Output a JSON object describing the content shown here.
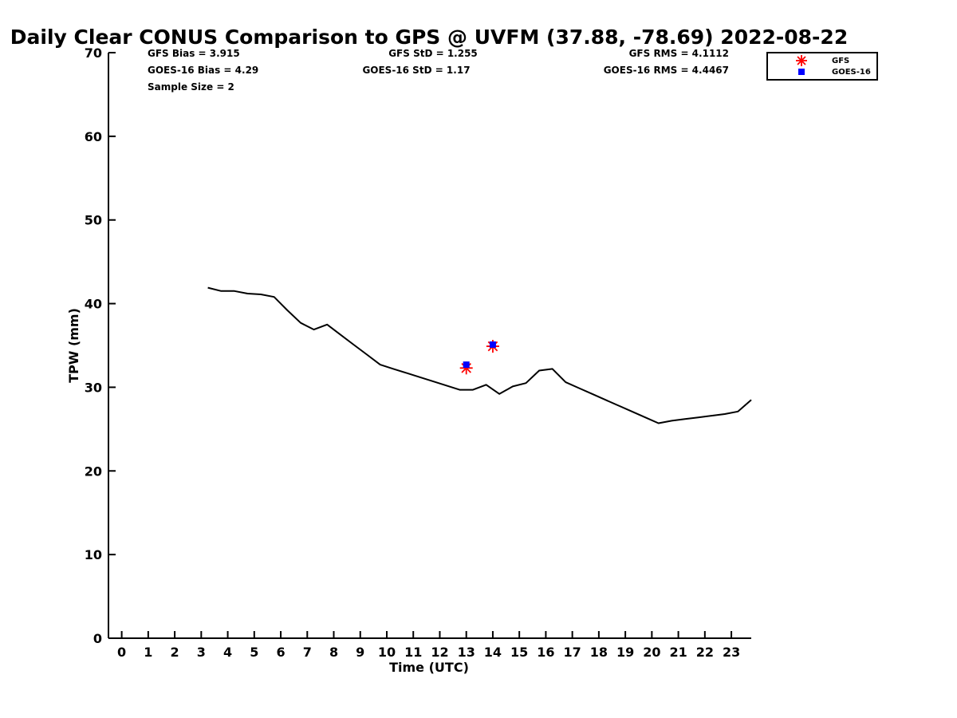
{
  "chart_data": {
    "type": "scatter",
    "title": "Daily Clear CONUS Comparison to GPS @ UVFM (37.88, -78.69) 2022-08-22",
    "xlabel": "Time (UTC)",
    "ylabel": "TPW (mm)",
    "xlim": [
      -0.5,
      23.75
    ],
    "ylim": [
      0,
      70
    ],
    "xticks": [
      0,
      1,
      2,
      3,
      4,
      5,
      6,
      7,
      8,
      9,
      10,
      11,
      12,
      13,
      14,
      15,
      16,
      17,
      18,
      19,
      20,
      21,
      22,
      23
    ],
    "yticks": [
      0,
      10,
      20,
      30,
      40,
      50,
      60,
      70
    ],
    "grid": false,
    "legend_position": "top-right",
    "stats": {
      "gfs_bias": "GFS Bias = 3.915",
      "goes_bias": "GOES-16 Bias = 4.29",
      "sample_size": "Sample Size = 2",
      "gfs_std": "GFS StD = 1.255",
      "goes_std": "GOES-16 StD = 1.17",
      "gfs_rms": "GFS RMS = 4.1112",
      "goes_rms": "GOES-16 RMS = 4.4467"
    },
    "gps_line": {
      "color": "#000000",
      "x": [
        3.25,
        3.75,
        4.25,
        4.75,
        5.25,
        5.75,
        6.25,
        6.75,
        7.25,
        7.75,
        8.25,
        8.75,
        9.25,
        9.75,
        10.25,
        10.75,
        11.25,
        11.75,
        12.25,
        12.75,
        13.25,
        13.75,
        14.25,
        14.75,
        15.25,
        15.75,
        16.25,
        16.75,
        17.25,
        17.75,
        18.25,
        18.75,
        19.25,
        19.75,
        20.25,
        20.75,
        21.25,
        21.75,
        22.25,
        22.75,
        23.25,
        23.75
      ],
      "y": [
        41.9,
        41.5,
        41.5,
        41.2,
        41.1,
        40.8,
        39.2,
        37.7,
        36.9,
        37.5,
        36.3,
        35.1,
        33.9,
        32.7,
        32.2,
        31.7,
        31.2,
        30.7,
        30.2,
        29.7,
        29.7,
        30.3,
        29.2,
        30.1,
        30.5,
        32.0,
        32.2,
        30.6,
        29.9,
        29.2,
        28.5,
        27.8,
        27.1,
        26.4,
        25.7,
        26.0,
        26.2,
        26.4,
        26.6,
        26.8,
        27.1,
        28.5
      ]
    },
    "series": [
      {
        "name": "GFS",
        "marker": "asterisk",
        "color": "#ff0000",
        "x": [
          13.0,
          14.0
        ],
        "y": [
          32.3,
          34.9
        ]
      },
      {
        "name": "GOES-16",
        "marker": "square",
        "color": "#0000ff",
        "x": [
          13.0,
          14.0
        ],
        "y": [
          32.7,
          35.1
        ]
      }
    ]
  }
}
